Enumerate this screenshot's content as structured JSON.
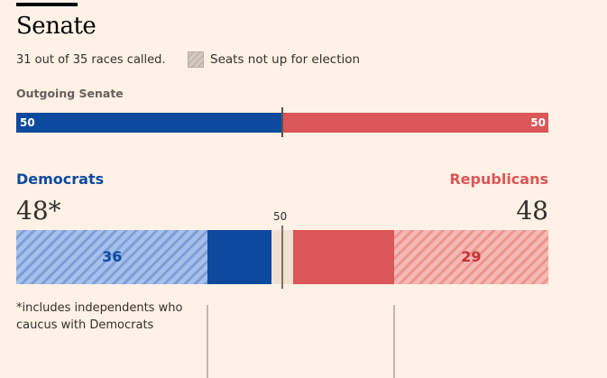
{
  "title": "Senate",
  "subtitle": "31 out of 35 races called.",
  "legend": {
    "label": "Seats not up for election"
  },
  "outgoing": {
    "label": "Outgoing Senate",
    "dem": "50",
    "rep": "50"
  },
  "colors": {
    "dem": "#0d4a9e",
    "rep": "#db5658",
    "dem_hatch": "#a4c0ec",
    "rep_hatch": "#f6b8b3",
    "uncalled": "#f2e0d0",
    "background": "#fff1e5"
  },
  "chart_data": {
    "type": "bar",
    "total_seats": 100,
    "majority_label": "50",
    "series": [
      {
        "name": "Democrats",
        "total": "48*",
        "not_up": 36,
        "won": 12,
        "not_up_label": "36"
      },
      {
        "name": "Republicans",
        "total": "48",
        "not_up": 29,
        "won": 19,
        "not_up_label": "29"
      }
    ],
    "uncalled": 4,
    "outgoing": {
      "Democrats": 50,
      "Republicans": 50
    }
  },
  "footnote": "*includes independents who caucus with Democrats"
}
